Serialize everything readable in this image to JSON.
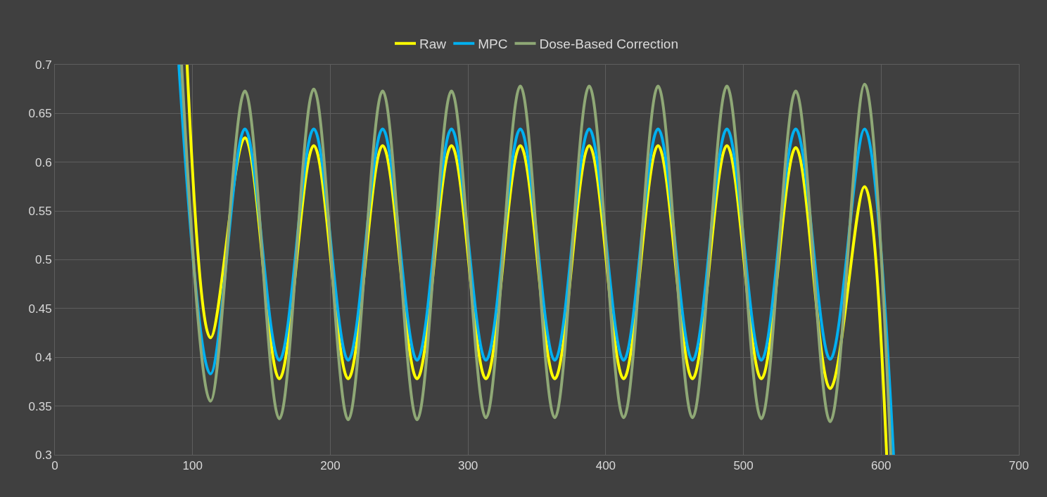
{
  "chart_data": {
    "type": "line",
    "series": [
      {
        "name": "Raw",
        "color": "#ffff00",
        "x": [
          96,
          113,
          138,
          163,
          188,
          213,
          238,
          263,
          288,
          313,
          338,
          363,
          388,
          413,
          438,
          463,
          488,
          513,
          538,
          563,
          588,
          604
        ],
        "values": [
          0.7,
          0.42,
          0.625,
          0.378,
          0.617,
          0.378,
          0.617,
          0.378,
          0.617,
          0.378,
          0.617,
          0.378,
          0.617,
          0.378,
          0.617,
          0.378,
          0.617,
          0.378,
          0.615,
          0.368,
          0.575,
          0.3
        ]
      },
      {
        "name": "MPC",
        "color": "#00b0f0",
        "x": [
          90,
          113,
          138,
          163,
          188,
          213,
          238,
          263,
          288,
          313,
          338,
          363,
          388,
          413,
          438,
          463,
          488,
          513,
          538,
          563,
          588,
          609
        ],
        "values": [
          0.7,
          0.383,
          0.634,
          0.397,
          0.634,
          0.397,
          0.634,
          0.397,
          0.634,
          0.397,
          0.634,
          0.397,
          0.634,
          0.397,
          0.634,
          0.397,
          0.634,
          0.397,
          0.634,
          0.398,
          0.634,
          0.3
        ]
      },
      {
        "name": "Dose-Based Correction",
        "color": "#8fa876",
        "x": [
          92,
          113,
          138,
          163,
          188,
          213,
          238,
          263,
          288,
          313,
          338,
          363,
          388,
          413,
          438,
          463,
          488,
          513,
          538,
          563,
          588,
          607
        ],
        "values": [
          0.7,
          0.355,
          0.673,
          0.337,
          0.675,
          0.336,
          0.673,
          0.336,
          0.673,
          0.338,
          0.678,
          0.338,
          0.678,
          0.338,
          0.678,
          0.338,
          0.678,
          0.337,
          0.673,
          0.334,
          0.68,
          0.3
        ]
      }
    ],
    "xlim": [
      0,
      700
    ],
    "xticks": [
      0,
      100,
      200,
      300,
      400,
      500,
      600,
      700
    ],
    "ylim": [
      0.3,
      0.7
    ],
    "yticks": [
      0.3,
      0.35,
      0.4,
      0.45,
      0.5,
      0.55,
      0.6,
      0.65,
      0.7
    ],
    "grid": true,
    "legend": "top",
    "marker": "none",
    "line_style": "solid"
  }
}
